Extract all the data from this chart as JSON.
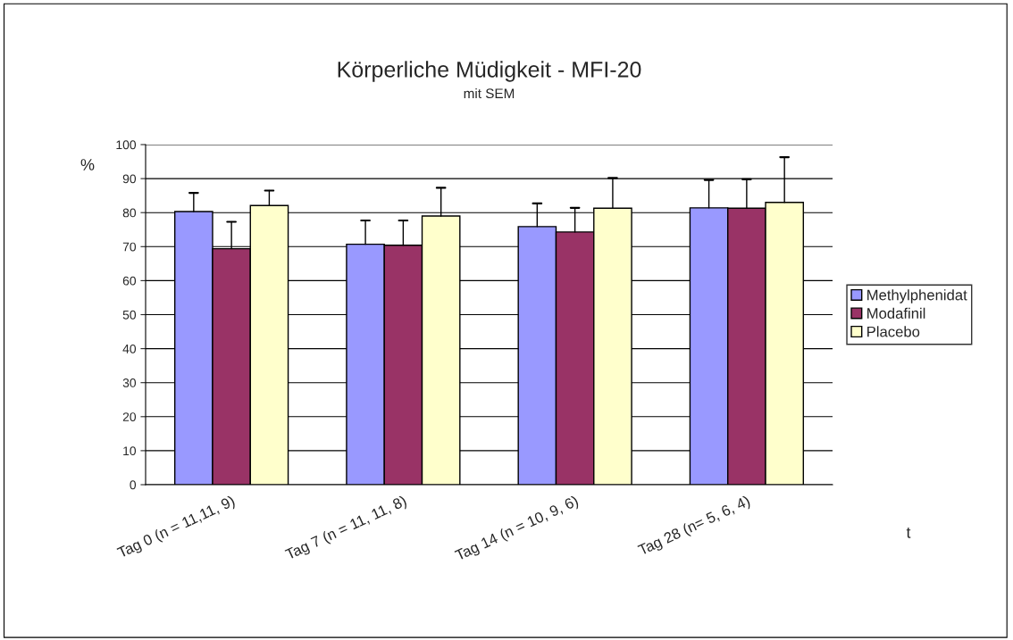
{
  "chart_data": {
    "type": "bar",
    "title": "Körperliche Müdigkeit - MFI-20",
    "subtitle": "mit SEM",
    "ylabel": "%",
    "xlabel": "t",
    "categories": [
      "Tag 0 (n = 11,11, 9)",
      "Tag 7 (n = 11, 11, 8)",
      "Tag 14 (n = 10, 9, 6)",
      "Tag 28 (n= 5, 6, 4)"
    ],
    "series": [
      {
        "name": "Methylphenidat",
        "color": "#9999ff",
        "values": [
          80.3,
          70.7,
          75.9,
          81.4
        ],
        "errors": [
          [
            80.3,
            85.8
          ],
          [
            70.7,
            77.7
          ],
          [
            75.9,
            82.7
          ],
          [
            81.4,
            89.6
          ]
        ]
      },
      {
        "name": "Modafinil",
        "color": "#993366",
        "values": [
          69.4,
          70.4,
          74.3,
          81.3
        ],
        "errors": [
          [
            69.4,
            77.3
          ],
          [
            70.4,
            77.7
          ],
          [
            74.3,
            81.4
          ],
          [
            81.3,
            89.8
          ]
        ]
      },
      {
        "name": "Placebo",
        "color": "#ffffcc",
        "values": [
          82.1,
          79.0,
          81.3,
          83.0
        ],
        "errors": [
          [
            82.1,
            86.5
          ],
          [
            79.0,
            87.3
          ],
          [
            81.3,
            90.2
          ],
          [
            83.0,
            96.3
          ]
        ]
      }
    ],
    "ylim": [
      0,
      100
    ],
    "yticks": [
      0,
      10,
      20,
      30,
      40,
      50,
      60,
      70,
      80,
      90,
      100
    ],
    "grid": "y",
    "legend": "right"
  }
}
